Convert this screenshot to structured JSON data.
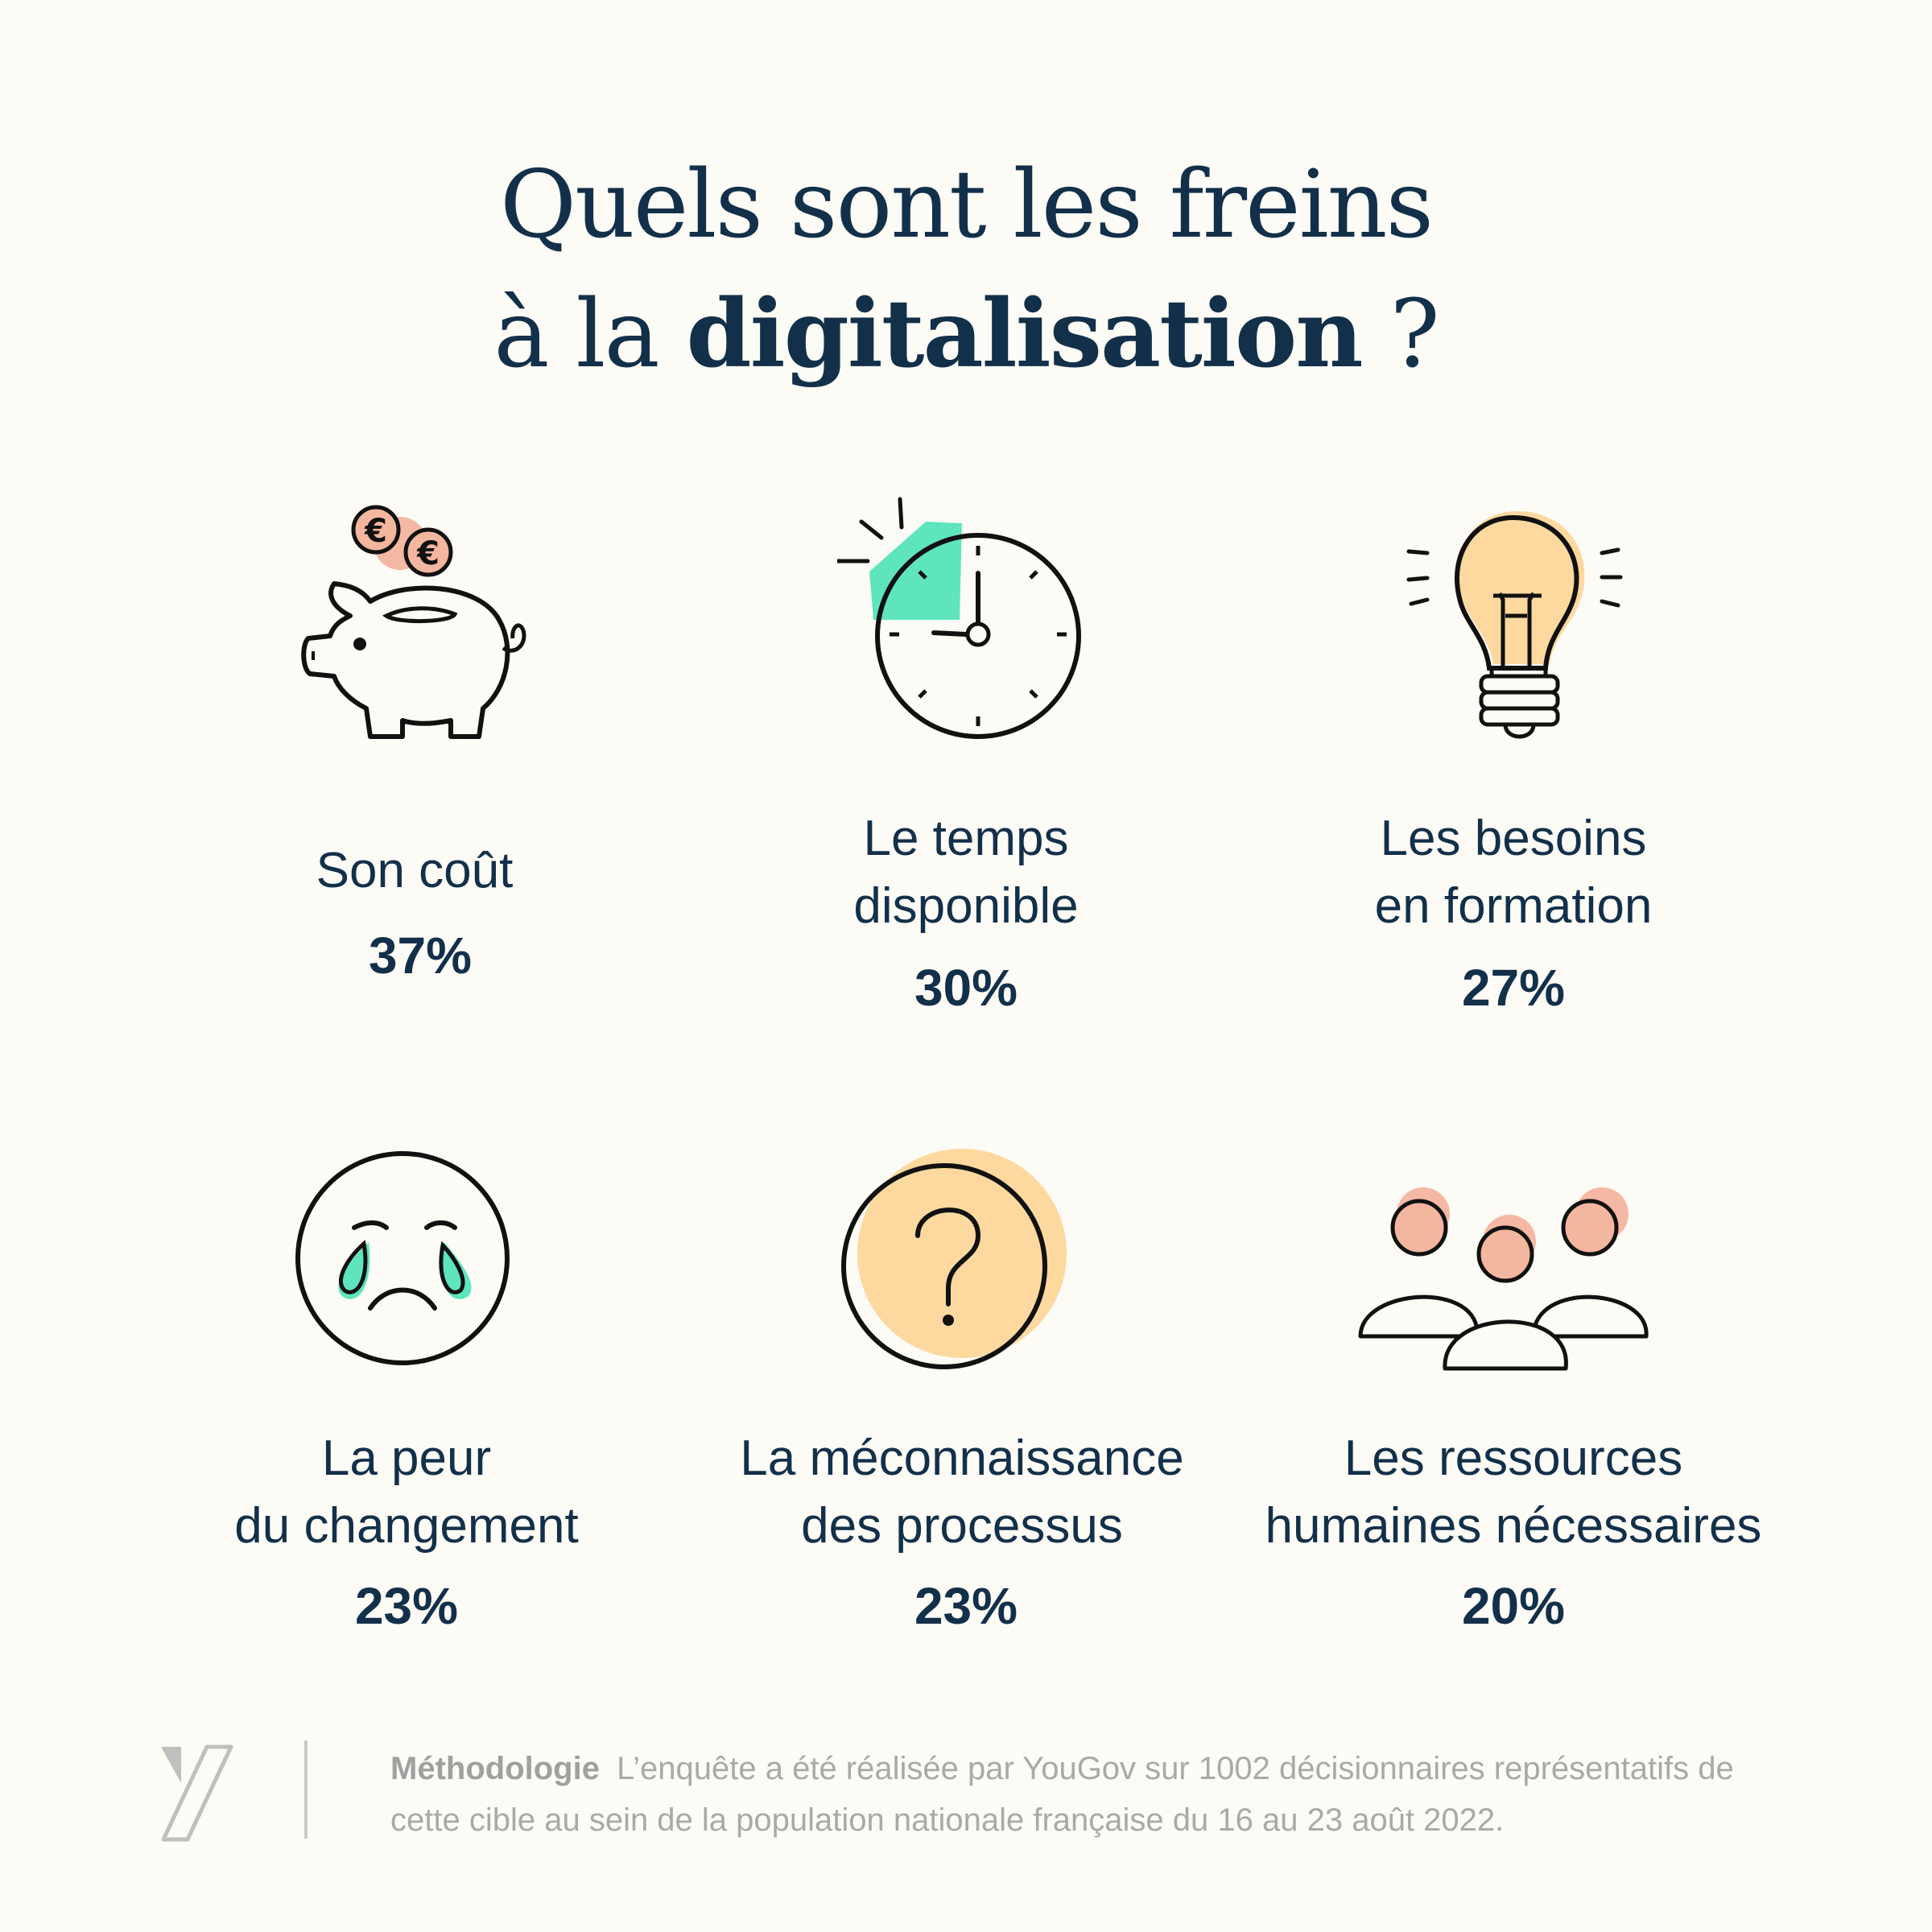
{
  "title": {
    "line1": "Quels sont les freins",
    "line2_prefix": "à la ",
    "line2_bold": "digitalisation",
    "line2_suffix": " ?"
  },
  "items": [
    {
      "label1": "Son coût",
      "label2": "",
      "value": "37%",
      "icon": "piggy-bank-icon"
    },
    {
      "label1": "Le temps",
      "label2": "disponible",
      "value": "30%",
      "icon": "clock-icon"
    },
    {
      "label1": "Les besoins",
      "label2": "en formation",
      "value": "27%",
      "icon": "light-bulb-icon"
    },
    {
      "label1": "La peur",
      "label2": "du changement",
      "value": "23%",
      "icon": "crying-face-icon"
    },
    {
      "label1": "La méconnaissance",
      "label2": "des processus",
      "value": "23%",
      "icon": "question-mark-icon"
    },
    {
      "label1": "Les ressources",
      "label2": "humaines nécessaires",
      "value": "20%",
      "icon": "people-group-icon"
    }
  ],
  "footer": {
    "methodology_label": "Méthodologie",
    "methodology_text": "L’enquête a été réalisée par YouGov sur 1002 décisionnaires représentatifs de cette cible au sein de la population nationale française du 16 au 23 août 2022."
  },
  "colors": {
    "background": "#fdfbf5",
    "text": "#13304a",
    "accent_green": "#5ee5bd",
    "accent_yellow": "#fdd9a0",
    "accent_pink": "#f5b8a5"
  }
}
